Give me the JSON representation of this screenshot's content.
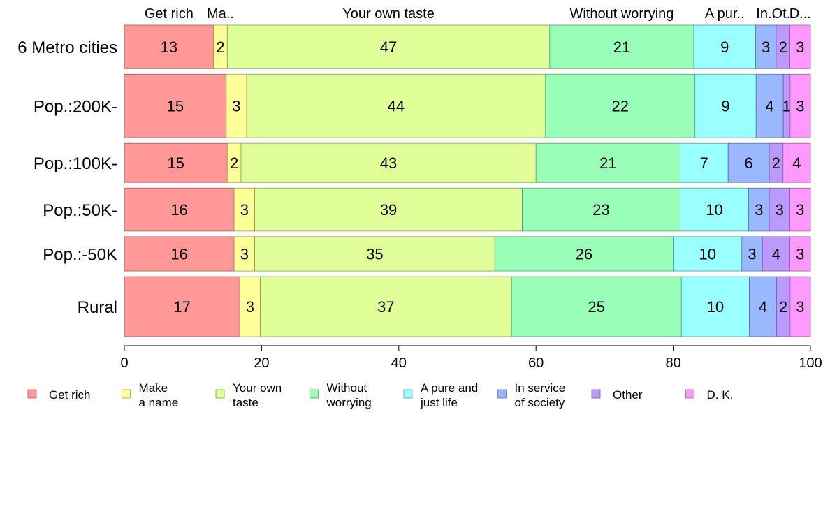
{
  "chart_data": {
    "type": "bar",
    "orientation": "horizontal",
    "stacked": true,
    "title": "",
    "xlabel": "",
    "ylabel": "",
    "xlim": [
      0,
      100
    ],
    "x_ticks": [
      "0",
      "20",
      "40",
      "60",
      "80",
      "100"
    ],
    "top_labels": [
      "Get rich",
      "Ma..",
      "Your own taste",
      "Without worrying",
      "A pur..",
      "In..",
      "Ot..",
      "D..."
    ],
    "grid": false,
    "legend_position": "bottom",
    "categories": [
      "6 Metro cities",
      "Pop.:200K-",
      "Pop.:100K-",
      "Pop.:50K-",
      "Pop.:-50K",
      "Rural"
    ],
    "bar_weights": [
      1.0,
      1.46,
      0.9,
      0.99,
      0.79,
      1.38
    ],
    "series": [
      {
        "name": "Get rich",
        "legend": [
          "Get rich"
        ],
        "color": "#FF9896",
        "values": [
          13,
          15,
          15,
          16,
          16,
          17
        ]
      },
      {
        "name": "Make a name",
        "legend": [
          "Make",
          "a name"
        ],
        "color": "#FFFF99",
        "values": [
          2,
          3,
          2,
          3,
          3,
          3
        ]
      },
      {
        "name": "Your own taste",
        "legend": [
          "Your own",
          "taste"
        ],
        "color": "#E0FF99",
        "values": [
          47,
          44,
          43,
          39,
          35,
          37
        ]
      },
      {
        "name": "Without worrying",
        "legend": [
          "Without",
          "worrying"
        ],
        "color": "#99FFB8",
        "values": [
          21,
          22,
          21,
          23,
          26,
          25
        ]
      },
      {
        "name": "A pure and just life",
        "legend": [
          "A pure and",
          "just life"
        ],
        "color": "#99FFFF",
        "values": [
          9,
          9,
          7,
          10,
          10,
          10
        ]
      },
      {
        "name": "In service of society",
        "legend": [
          "In service",
          "of society"
        ],
        "color": "#99B8FF",
        "values": [
          3,
          4,
          6,
          3,
          3,
          4
        ]
      },
      {
        "name": "Other",
        "legend": [
          "Other"
        ],
        "color": "#BB99FF",
        "values": [
          2,
          1,
          2,
          3,
          4,
          2
        ]
      },
      {
        "name": "D. K.",
        "legend": [
          "D. K."
        ],
        "color": "#FF99FF",
        "values": [
          3,
          3,
          4,
          3,
          3,
          3
        ]
      }
    ]
  }
}
